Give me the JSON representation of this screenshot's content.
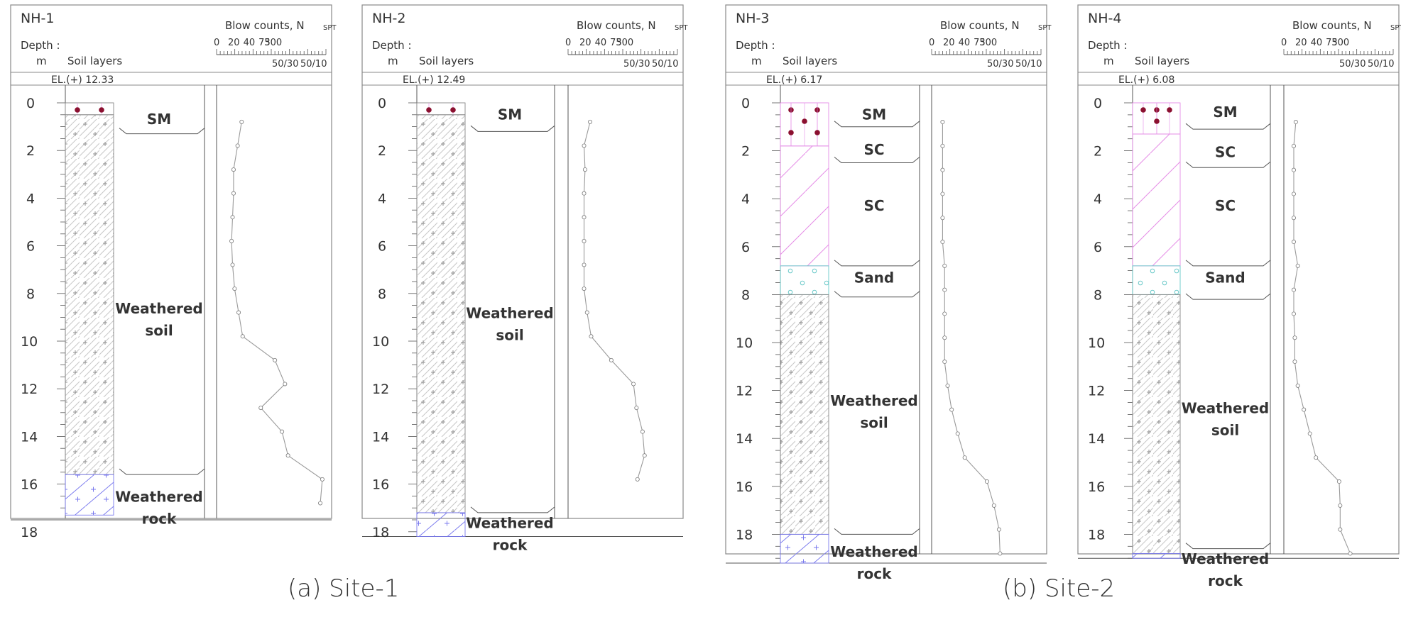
{
  "header": {
    "depth_label": "Depth :",
    "depth_unit": "m",
    "layers_label": "Soil layers",
    "blow_label": "Blow counts, N",
    "blow_sub": "SPT",
    "scale_ticks": [
      "0",
      "20",
      "40",
      "75",
      "300"
    ],
    "scale_sub": [
      "50/30",
      "50/10"
    ]
  },
  "captions": [
    "(a) Site-1",
    "(b) Site-2"
  ],
  "boreholes": [
    {
      "id": "NH-1",
      "elevation": "EL.(+) 12.33",
      "max_depth": 17.5,
      "depth_ticks": [
        "0",
        "2",
        "4",
        "6",
        "8",
        "10",
        "12",
        "14",
        "16",
        "18"
      ],
      "layers": [
        {
          "label": "SM",
          "top": 0,
          "bottom": 0.5,
          "hatch": "fill"
        },
        {
          "label": "Weathered soil",
          "top": 0.5,
          "bottom": 15.6,
          "hatch": "weathered-soil"
        },
        {
          "label": "Weathered rock",
          "top": 15.6,
          "bottom": 17.3,
          "hatch": "weathered-rock"
        }
      ],
      "label_positions": [
        0.6,
        8.6,
        16.5
      ],
      "boundaries": [
        1.3,
        15.6
      ],
      "spt": [
        [
          0.8,
          15
        ],
        [
          1.8,
          11
        ],
        [
          2.8,
          7
        ],
        [
          3.8,
          7
        ],
        [
          4.8,
          6
        ],
        [
          5.8,
          5
        ],
        [
          6.8,
          6
        ],
        [
          7.8,
          8
        ],
        [
          8.8,
          12
        ],
        [
          9.8,
          16
        ],
        [
          10.8,
          48
        ],
        [
          11.8,
          58
        ],
        [
          12.8,
          34
        ],
        [
          13.8,
          55
        ],
        [
          14.8,
          61
        ],
        [
          15.8,
          95
        ],
        [
          16.8,
          93
        ]
      ]
    },
    {
      "id": "NH-2",
      "elevation": "EL.(+) 12.49",
      "max_depth": 18.2,
      "depth_ticks": [
        "0",
        "2",
        "4",
        "6",
        "8",
        "10",
        "12",
        "14",
        "16",
        "18"
      ],
      "layers": [
        {
          "label": "SM",
          "top": 0,
          "bottom": 0.5,
          "hatch": "fill"
        },
        {
          "label": "Weathered soil",
          "top": 0.5,
          "bottom": 17.2,
          "hatch": "weathered-soil"
        },
        {
          "label": "Weathered rock",
          "top": 17.2,
          "bottom": 18.2,
          "hatch": "weathered-rock"
        }
      ],
      "label_positions": [
        0.4,
        8.8,
        17.6
      ],
      "boundaries": [
        1.2,
        17.2
      ],
      "spt": [
        [
          0.8,
          12
        ],
        [
          1.8,
          6
        ],
        [
          2.8,
          7
        ],
        [
          3.8,
          6
        ],
        [
          4.8,
          6
        ],
        [
          5.8,
          6
        ],
        [
          6.8,
          6
        ],
        [
          7.8,
          6
        ],
        [
          8.8,
          9
        ],
        [
          9.8,
          13
        ],
        [
          10.8,
          33
        ],
        [
          11.8,
          55
        ],
        [
          12.8,
          58
        ],
        [
          13.8,
          64
        ],
        [
          14.8,
          66
        ],
        [
          15.8,
          59
        ]
      ]
    },
    {
      "id": "NH-3",
      "elevation": "EL.(+) 6.17",
      "max_depth": 19.2,
      "depth_ticks": [
        "0",
        "2",
        "4",
        "6",
        "8",
        "10",
        "12",
        "14",
        "16",
        "18"
      ],
      "layers": [
        {
          "label": "SM",
          "top": 0,
          "bottom": 1.8,
          "hatch": "sm"
        },
        {
          "label": "SC",
          "top": 1.8,
          "bottom": 6.8,
          "hatch": "sc"
        },
        {
          "label": "Sand",
          "top": 6.8,
          "bottom": 8.0,
          "hatch": "sand"
        },
        {
          "label": "Weathered soil",
          "top": 8.0,
          "bottom": 18.0,
          "hatch": "weathered-soil"
        },
        {
          "label": "Weathered rock",
          "top": 18.0,
          "bottom": 19.2,
          "hatch": "weathered-rock"
        }
      ],
      "extra_labels": [
        {
          "label": "SC",
          "depth": 1.9
        }
      ],
      "label_positions": [
        0.4,
        4.2,
        7.2,
        12.4,
        18.7
      ],
      "boundaries": [
        1.0,
        2.5,
        6.8,
        8.1,
        18.0
      ],
      "spt": [
        [
          0.8,
          1
        ],
        [
          1.8,
          1
        ],
        [
          2.8,
          1
        ],
        [
          3.8,
          1
        ],
        [
          4.8,
          1
        ],
        [
          5.8,
          1
        ],
        [
          6.8,
          3
        ],
        [
          7.8,
          3
        ],
        [
          8.8,
          3
        ],
        [
          9.8,
          3
        ],
        [
          10.8,
          3
        ],
        [
          11.8,
          6
        ],
        [
          12.8,
          10
        ],
        [
          13.8,
          16
        ],
        [
          14.8,
          23
        ],
        [
          15.8,
          45
        ],
        [
          16.8,
          52
        ],
        [
          17.8,
          57
        ],
        [
          18.8,
          58
        ]
      ]
    },
    {
      "id": "NH-4",
      "elevation": "EL.(+) 6.08",
      "max_depth": 19.0,
      "depth_ticks": [
        "0",
        "2",
        "4",
        "6",
        "8",
        "10",
        "12",
        "14",
        "16",
        "18"
      ],
      "layers": [
        {
          "label": "SM",
          "top": 0,
          "bottom": 1.3,
          "hatch": "sm"
        },
        {
          "label": "SC",
          "top": 1.3,
          "bottom": 6.8,
          "hatch": "sc"
        },
        {
          "label": "Sand",
          "top": 6.8,
          "bottom": 8.0,
          "hatch": "sand"
        },
        {
          "label": "Weathered soil",
          "top": 8.0,
          "bottom": 18.8,
          "hatch": "weathered-soil"
        },
        {
          "label": "Weathered rock",
          "top": 18.8,
          "bottom": 19.0,
          "hatch": "weathered-rock"
        }
      ],
      "extra_labels": [
        {
          "label": "SC",
          "depth": 2.0
        }
      ],
      "label_positions": [
        0.3,
        4.2,
        7.2,
        12.7,
        19.0
      ],
      "boundaries": [
        1.1,
        2.7,
        6.8,
        8.2,
        18.6
      ],
      "spt": [
        [
          0.8,
          2
        ],
        [
          1.8,
          0
        ],
        [
          2.8,
          0
        ],
        [
          3.8,
          0
        ],
        [
          4.8,
          0
        ],
        [
          5.8,
          0
        ],
        [
          6.8,
          4
        ],
        [
          7.8,
          0
        ],
        [
          8.8,
          0
        ],
        [
          9.8,
          1
        ],
        [
          10.8,
          1
        ],
        [
          11.8,
          4
        ],
        [
          12.8,
          10
        ],
        [
          13.8,
          16
        ],
        [
          14.8,
          22
        ],
        [
          15.8,
          45
        ],
        [
          16.8,
          46
        ],
        [
          17.8,
          46
        ],
        [
          18.8,
          56
        ]
      ]
    }
  ],
  "colors": {
    "line": "#888888",
    "dark": "#555555",
    "sm_pink": "#e58ce6",
    "sand_teal": "#68c8c8",
    "rock_blue": "#7a7aee",
    "marker": "#8b1030"
  }
}
